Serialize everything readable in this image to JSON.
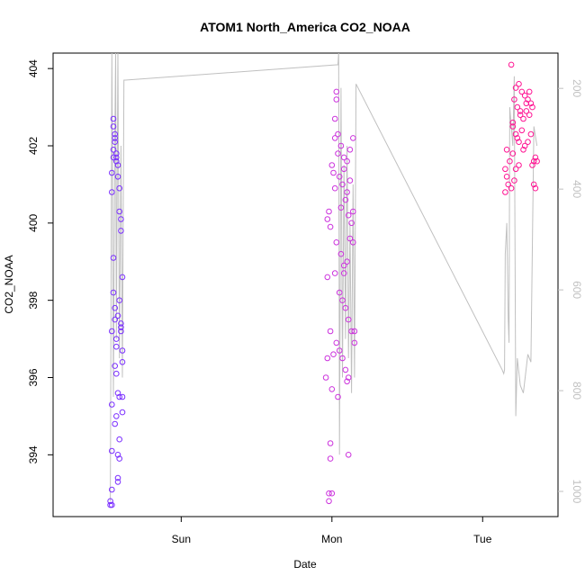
{
  "chart_data": {
    "type": "scatter",
    "title": "ATOM1 North_America CO2_NOAA",
    "xlabel": "Date",
    "ylabel": "CO2_NOAA",
    "x_ticks": [
      "Sun",
      "Mon",
      "Tue"
    ],
    "y_ticks": [
      "394",
      "396",
      "398",
      "400",
      "402",
      "404"
    ],
    "y_right_ticks": [
      "200",
      "400",
      "600",
      "800",
      "1000"
    ],
    "ylim": [
      392.4,
      404.4
    ],
    "y_right_lim": [
      1050,
      130
    ],
    "right_axis_inverted": true,
    "grid": false,
    "colors": {
      "early": "#7b2fff",
      "middle": "#cc33dd",
      "late": "#ff1493",
      "line": "#c0c0c0"
    },
    "series": [
      {
        "points": [
          {
            "x": 0.05,
            "y": 402.7
          },
          {
            "x": 0.05,
            "y": 402.5
          },
          {
            "x": 0.06,
            "y": 402.3
          },
          {
            "x": 0.06,
            "y": 402.1
          },
          {
            "x": 0.05,
            "y": 401.9
          },
          {
            "x": 0.05,
            "y": 401.7
          },
          {
            "x": 0.04,
            "y": 401.3
          },
          {
            "x": 0.04,
            "y": 400.8
          },
          {
            "x": 0.06,
            "y": 402.2
          },
          {
            "x": 0.07,
            "y": 401.8
          },
          {
            "x": 0.07,
            "y": 401.6
          },
          {
            "x": 0.08,
            "y": 401.5
          },
          {
            "x": 0.08,
            "y": 401.2
          },
          {
            "x": 0.09,
            "y": 400.9
          },
          {
            "x": 0.09,
            "y": 400.3
          },
          {
            "x": 0.1,
            "y": 400.1
          },
          {
            "x": 0.1,
            "y": 399.8
          },
          {
            "x": 0.11,
            "y": 398.6
          },
          {
            "x": 0.05,
            "y": 399.1
          },
          {
            "x": 0.06,
            "y": 397.8
          },
          {
            "x": 0.05,
            "y": 398.2
          },
          {
            "x": 0.06,
            "y": 397.5
          },
          {
            "x": 0.07,
            "y": 397.0
          },
          {
            "x": 0.07,
            "y": 396.8
          },
          {
            "x": 0.06,
            "y": 396.3
          },
          {
            "x": 0.07,
            "y": 396.1
          },
          {
            "x": 0.08,
            "y": 397.6
          },
          {
            "x": 0.09,
            "y": 398.0
          },
          {
            "x": 0.1,
            "y": 397.2
          },
          {
            "x": 0.11,
            "y": 396.7
          },
          {
            "x": 0.11,
            "y": 396.4
          },
          {
            "x": 0.08,
            "y": 395.6
          },
          {
            "x": 0.09,
            "y": 395.5
          },
          {
            "x": 0.11,
            "y": 395.5
          },
          {
            "x": 0.04,
            "y": 395.3
          },
          {
            "x": 0.07,
            "y": 395.0
          },
          {
            "x": 0.06,
            "y": 394.8
          },
          {
            "x": 0.11,
            "y": 395.1
          },
          {
            "x": 0.09,
            "y": 394.4
          },
          {
            "x": 0.04,
            "y": 394.1
          },
          {
            "x": 0.08,
            "y": 394.0
          },
          {
            "x": 0.09,
            "y": 393.9
          },
          {
            "x": 0.08,
            "y": 393.4
          },
          {
            "x": 0.08,
            "y": 393.3
          },
          {
            "x": 0.04,
            "y": 393.1
          },
          {
            "x": 0.03,
            "y": 392.8
          },
          {
            "x": 0.03,
            "y": 392.7
          },
          {
            "x": 0.04,
            "y": 392.7
          },
          {
            "x": 0.1,
            "y": 397.3
          },
          {
            "x": 0.1,
            "y": 397.4
          },
          {
            "x": 0.04,
            "y": 397.2
          },
          {
            "x": 0.07,
            "y": 401.7
          }
        ]
      },
      {
        "points": [
          {
            "x": 1.53,
            "y": 403.4
          },
          {
            "x": 1.53,
            "y": 403.2
          },
          {
            "x": 1.52,
            "y": 402.7
          },
          {
            "x": 1.54,
            "y": 402.3
          },
          {
            "x": 1.56,
            "y": 402.0
          },
          {
            "x": 1.52,
            "y": 402.2
          },
          {
            "x": 1.58,
            "y": 401.7
          },
          {
            "x": 1.6,
            "y": 401.6
          },
          {
            "x": 1.62,
            "y": 401.9
          },
          {
            "x": 1.64,
            "y": 402.2
          },
          {
            "x": 1.5,
            "y": 401.5
          },
          {
            "x": 1.51,
            "y": 401.3
          },
          {
            "x": 1.55,
            "y": 401.2
          },
          {
            "x": 1.57,
            "y": 401.0
          },
          {
            "x": 1.59,
            "y": 400.6
          },
          {
            "x": 1.61,
            "y": 400.2
          },
          {
            "x": 1.63,
            "y": 400.0
          },
          {
            "x": 1.48,
            "y": 400.3
          },
          {
            "x": 1.47,
            "y": 400.1
          },
          {
            "x": 1.49,
            "y": 399.9
          },
          {
            "x": 1.53,
            "y": 399.5
          },
          {
            "x": 1.56,
            "y": 399.2
          },
          {
            "x": 1.58,
            "y": 398.9
          },
          {
            "x": 1.6,
            "y": 399.0
          },
          {
            "x": 1.62,
            "y": 399.6
          },
          {
            "x": 1.64,
            "y": 399.5
          },
          {
            "x": 1.52,
            "y": 398.7
          },
          {
            "x": 1.55,
            "y": 398.2
          },
          {
            "x": 1.57,
            "y": 398.0
          },
          {
            "x": 1.59,
            "y": 397.8
          },
          {
            "x": 1.61,
            "y": 397.5
          },
          {
            "x": 1.63,
            "y": 397.2
          },
          {
            "x": 1.65,
            "y": 397.2
          },
          {
            "x": 1.47,
            "y": 398.6
          },
          {
            "x": 1.49,
            "y": 397.2
          },
          {
            "x": 1.51,
            "y": 396.6
          },
          {
            "x": 1.53,
            "y": 396.9
          },
          {
            "x": 1.55,
            "y": 396.7
          },
          {
            "x": 1.57,
            "y": 396.5
          },
          {
            "x": 1.59,
            "y": 396.2
          },
          {
            "x": 1.61,
            "y": 396.0
          },
          {
            "x": 1.47,
            "y": 396.5
          },
          {
            "x": 1.46,
            "y": 396.0
          },
          {
            "x": 1.5,
            "y": 395.7
          },
          {
            "x": 1.54,
            "y": 395.5
          },
          {
            "x": 1.6,
            "y": 395.9
          },
          {
            "x": 1.65,
            "y": 396.9
          },
          {
            "x": 1.49,
            "y": 394.3
          },
          {
            "x": 1.49,
            "y": 393.9
          },
          {
            "x": 1.61,
            "y": 394.0
          },
          {
            "x": 1.48,
            "y": 393.0
          },
          {
            "x": 1.48,
            "y": 392.8
          },
          {
            "x": 1.5,
            "y": 393.0
          },
          {
            "x": 1.54,
            "y": 401.8
          },
          {
            "x": 1.58,
            "y": 401.4
          },
          {
            "x": 1.6,
            "y": 400.8
          },
          {
            "x": 1.62,
            "y": 401.1
          },
          {
            "x": 1.56,
            "y": 400.4
          },
          {
            "x": 1.52,
            "y": 400.9
          },
          {
            "x": 1.58,
            "y": 398.7
          },
          {
            "x": 1.64,
            "y": 400.3
          }
        ]
      },
      {
        "points": [
          {
            "x": 2.69,
            "y": 404.1
          },
          {
            "x": 2.72,
            "y": 403.5
          },
          {
            "x": 2.74,
            "y": 403.6
          },
          {
            "x": 2.76,
            "y": 403.4
          },
          {
            "x": 2.78,
            "y": 403.3
          },
          {
            "x": 2.8,
            "y": 403.2
          },
          {
            "x": 2.82,
            "y": 403.1
          },
          {
            "x": 2.71,
            "y": 403.2
          },
          {
            "x": 2.73,
            "y": 403.0
          },
          {
            "x": 2.75,
            "y": 402.9
          },
          {
            "x": 2.77,
            "y": 402.7
          },
          {
            "x": 2.79,
            "y": 402.9
          },
          {
            "x": 2.81,
            "y": 402.8
          },
          {
            "x": 2.83,
            "y": 403.0
          },
          {
            "x": 2.7,
            "y": 402.5
          },
          {
            "x": 2.72,
            "y": 402.3
          },
          {
            "x": 2.74,
            "y": 402.1
          },
          {
            "x": 2.76,
            "y": 402.4
          },
          {
            "x": 2.78,
            "y": 402.0
          },
          {
            "x": 2.8,
            "y": 402.1
          },
          {
            "x": 2.82,
            "y": 402.3
          },
          {
            "x": 2.66,
            "y": 401.9
          },
          {
            "x": 2.68,
            "y": 401.6
          },
          {
            "x": 2.7,
            "y": 401.8
          },
          {
            "x": 2.72,
            "y": 401.4
          },
          {
            "x": 2.74,
            "y": 401.5
          },
          {
            "x": 2.84,
            "y": 401.6
          },
          {
            "x": 2.85,
            "y": 401.7
          },
          {
            "x": 2.83,
            "y": 401.5
          },
          {
            "x": 2.65,
            "y": 401.4
          },
          {
            "x": 2.66,
            "y": 401.2
          },
          {
            "x": 2.67,
            "y": 401.0
          },
          {
            "x": 2.65,
            "y": 400.8
          },
          {
            "x": 2.69,
            "y": 400.9
          },
          {
            "x": 2.71,
            "y": 401.1
          },
          {
            "x": 2.84,
            "y": 401.0
          },
          {
            "x": 2.85,
            "y": 400.9
          },
          {
            "x": 2.7,
            "y": 402.6
          },
          {
            "x": 2.75,
            "y": 402.8
          },
          {
            "x": 2.81,
            "y": 403.4
          },
          {
            "x": 2.79,
            "y": 403.1
          },
          {
            "x": 2.73,
            "y": 402.2
          },
          {
            "x": 2.77,
            "y": 401.9
          },
          {
            "x": 2.86,
            "y": 401.6
          }
        ]
      }
    ],
    "line": {
      "x": [
        0.03,
        0.04,
        0.045,
        0.05,
        0.06,
        0.065,
        0.07,
        0.08,
        0.09,
        0.1,
        0.11,
        0.12,
        0.13,
        1.54,
        1.545,
        1.55,
        1.56,
        1.57,
        1.58,
        1.59,
        1.6,
        1.61,
        1.62,
        1.63,
        1.64,
        1.65,
        1.66,
        2.63,
        2.64,
        2.645,
        2.65,
        2.66,
        2.67,
        2.675,
        2.68,
        2.69,
        2.7,
        2.71,
        2.72,
        2.73,
        2.75,
        2.76,
        2.77,
        2.8,
        2.82,
        2.84,
        2.86
      ],
      "y": [
        392.8,
        404.4,
        401.0,
        395.5,
        402.5,
        404.4,
        397.0,
        404.4,
        396.5,
        402.0,
        396.0,
        403.7,
        403.7,
        404.1,
        404.4,
        394.0,
        403.5,
        396.0,
        401.5,
        397.0,
        402.0,
        396.5,
        400.0,
        395.6,
        401.0,
        396.0,
        403.6,
        396.2,
        396.1,
        396.2,
        399.2,
        400.0,
        397.5,
        396.9,
        403.0,
        402.5,
        402.0,
        403.8,
        395.0,
        396.5,
        395.8,
        395.7,
        395.6,
        396.6,
        396.4,
        402.5,
        402.0
      ]
    }
  }
}
